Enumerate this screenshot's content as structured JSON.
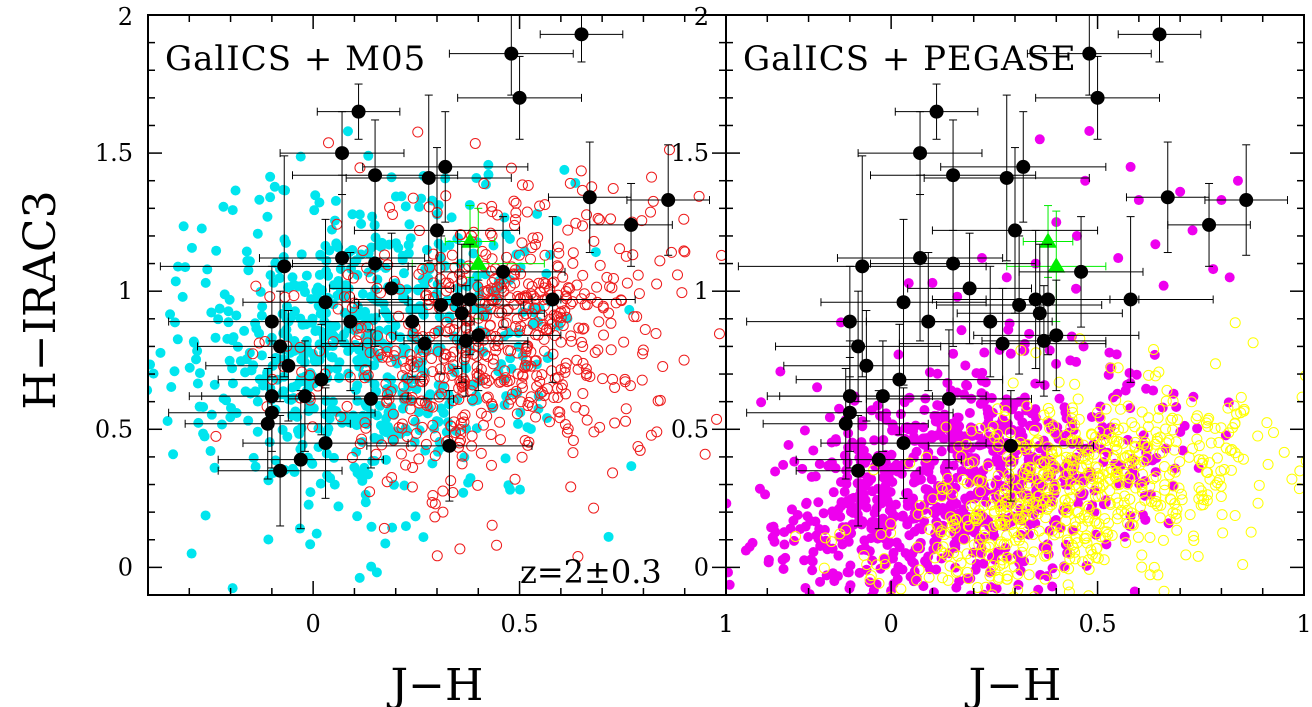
{
  "chart_data": [
    {
      "type": "scatter",
      "panel_title": "GalICS + M05",
      "xlabel": "J−H",
      "ylabel": "H−IRAC3",
      "xlim": [
        -0.4,
        1.0
      ],
      "ylim": [
        -0.1,
        2.0
      ],
      "xticks": [
        "0",
        "0.5",
        "1"
      ],
      "yticks": [
        "0",
        "0.5",
        "1",
        "1.5",
        "2"
      ],
      "annotation": "z=2±0.3",
      "series": [
        {
          "color": "#00e5ee",
          "marker": "filled-circle",
          "cloud": {
            "center": [
              0.12,
              0.8
            ],
            "spread": [
              0.22,
              0.36
            ],
            "n": 700,
            "rotation": 0.55
          }
        },
        {
          "color": "#ee1c1c",
          "marker": "open-circle",
          "cloud": {
            "center": [
              0.45,
              0.82
            ],
            "spread": [
              0.22,
              0.3
            ],
            "n": 650,
            "rotation": 0.45
          }
        },
        {
          "color": "#00ee00",
          "marker": "filled-triangle",
          "points": [
            {
              "x": 0.38,
              "y": 1.18,
              "xerr": 0.06,
              "yerr": 0.13
            },
            {
              "x": 0.4,
              "y": 1.1,
              "xerr": 0.16,
              "yerr": 0.2
            }
          ]
        },
        {
          "color": "#000000",
          "marker": "filled-circle",
          "points": [
            {
              "x": -0.1,
              "y": 0.89,
              "xerr": 0.25,
              "yerr": 0.2
            },
            {
              "x": -0.07,
              "y": 1.09,
              "xerr": 0.3,
              "yerr": 0.4
            },
            {
              "x": -0.08,
              "y": 0.8,
              "xerr": 0.2,
              "yerr": 0.2
            },
            {
              "x": -0.06,
              "y": 0.73,
              "xerr": 0.2,
              "yerr": 0.2
            },
            {
              "x": -0.1,
              "y": 0.62,
              "xerr": 0.2,
              "yerr": 0.2
            },
            {
              "x": -0.1,
              "y": 0.56,
              "xerr": 0.25,
              "yerr": 0.2
            },
            {
              "x": -0.11,
              "y": 0.52,
              "xerr": 0.2,
              "yerr": 0.2
            },
            {
              "x": -0.02,
              "y": 0.62,
              "xerr": 0.25,
              "yerr": 0.2
            },
            {
              "x": -0.08,
              "y": 0.35,
              "xerr": 0.15,
              "yerr": 0.2
            },
            {
              "x": -0.03,
              "y": 0.39,
              "xerr": 0.2,
              "yerr": 0.25
            },
            {
              "x": 0.03,
              "y": 0.45,
              "xerr": 0.2,
              "yerr": 0.2
            },
            {
              "x": 0.02,
              "y": 0.68,
              "xerr": 0.25,
              "yerr": 0.2
            },
            {
              "x": 0.03,
              "y": 0.96,
              "xerr": 0.2,
              "yerr": 0.3
            },
            {
              "x": 0.07,
              "y": 1.12,
              "xerr": 0.2,
              "yerr": 0.3
            },
            {
              "x": 0.09,
              "y": 0.89,
              "xerr": 0.15,
              "yerr": 0.25
            },
            {
              "x": 0.14,
              "y": 0.61,
              "xerr": 0.2,
              "yerr": 0.25
            },
            {
              "x": 0.15,
              "y": 1.1,
              "xerr": 0.2,
              "yerr": 0.3
            },
            {
              "x": 0.19,
              "y": 1.01,
              "xerr": 0.15,
              "yerr": 0.2
            },
            {
              "x": 0.24,
              "y": 0.89,
              "xerr": 0.15,
              "yerr": 0.2
            },
            {
              "x": 0.27,
              "y": 0.81,
              "xerr": 0.25,
              "yerr": 0.2
            },
            {
              "x": 0.3,
              "y": 1.22,
              "xerr": 0.2,
              "yerr": 0.3
            },
            {
              "x": 0.31,
              "y": 0.95,
              "xerr": 0.2,
              "yerr": 0.25
            },
            {
              "x": 0.33,
              "y": 0.44,
              "xerr": 0.2,
              "yerr": 0.2
            },
            {
              "x": 0.35,
              "y": 0.97,
              "xerr": 0.25,
              "yerr": 0.25
            },
            {
              "x": 0.36,
              "y": 0.92,
              "xerr": 0.2,
              "yerr": 0.25
            },
            {
              "x": 0.37,
              "y": 0.82,
              "xerr": 0.15,
              "yerr": 0.2
            },
            {
              "x": 0.38,
              "y": 0.97,
              "xerr": 0.15,
              "yerr": 0.2
            },
            {
              "x": 0.28,
              "y": 1.41,
              "xerr": 0.2,
              "yerr": 0.3
            },
            {
              "x": 0.07,
              "y": 1.5,
              "xerr": 0.15,
              "yerr": 0.15
            },
            {
              "x": 0.15,
              "y": 1.42,
              "xerr": 0.2,
              "yerr": 0.2
            },
            {
              "x": 0.32,
              "y": 1.45,
              "xerr": 0.2,
              "yerr": 0.2
            },
            {
              "x": 0.11,
              "y": 1.65,
              "xerr": 0.1,
              "yerr": 0.1
            },
            {
              "x": 0.48,
              "y": 1.86,
              "xerr": 0.15,
              "yerr": 0.15
            },
            {
              "x": 0.5,
              "y": 1.7,
              "xerr": 0.15,
              "yerr": 0.15
            },
            {
              "x": 0.65,
              "y": 1.93,
              "xerr": 0.1,
              "yerr": 0.1
            },
            {
              "x": 0.46,
              "y": 1.07,
              "xerr": 0.15,
              "yerr": 0.2
            },
            {
              "x": 0.58,
              "y": 0.97,
              "xerr": 0.2,
              "yerr": 0.3
            },
            {
              "x": 0.67,
              "y": 1.34,
              "xerr": 0.1,
              "yerr": 0.2
            },
            {
              "x": 0.77,
              "y": 1.24,
              "xerr": 0.1,
              "yerr": 0.15
            },
            {
              "x": 0.86,
              "y": 1.33,
              "xerr": 0.1,
              "yerr": 0.2
            },
            {
              "x": 0.4,
              "y": 0.84,
              "xerr": 0.2,
              "yerr": 0.2
            }
          ]
        }
      ]
    },
    {
      "type": "scatter",
      "panel_title": "GalICS + PEGASE",
      "xlabel": "J−H",
      "ylabel": "",
      "xlim": [
        -0.4,
        1.0
      ],
      "ylim": [
        -0.1,
        2.0
      ],
      "xticks": [
        "1",
        "0",
        "0.5",
        "1"
      ],
      "yticks": [
        "0",
        "0.5",
        "1",
        "1.5",
        "2"
      ],
      "series": [
        {
          "color": "#ee00ee",
          "marker": "filled-circle",
          "cloud": {
            "center": [
              0.15,
              0.3
            ],
            "spread": [
              0.25,
              0.26
            ],
            "n": 900,
            "rotation": 0.25
          }
        },
        {
          "color": "#ffff00",
          "marker": "open-circle",
          "cloud": {
            "center": [
              0.45,
              0.28
            ],
            "spread": [
              0.24,
              0.22
            ],
            "n": 700,
            "rotation": 0.35
          }
        },
        {
          "color": "#ee00ee",
          "marker": "filled-circle",
          "points": [
            {
              "x": 0.36,
              "y": 1.55
            },
            {
              "x": 0.48,
              "y": 1.58
            },
            {
              "x": 0.47,
              "y": 1.4
            },
            {
              "x": 0.58,
              "y": 1.45
            },
            {
              "x": 0.6,
              "y": 1.33
            },
            {
              "x": 0.7,
              "y": 1.36
            },
            {
              "x": 0.8,
              "y": 1.33
            },
            {
              "x": 0.84,
              "y": 1.4
            },
            {
              "x": 0.73,
              "y": 1.22
            },
            {
              "x": 0.78,
              "y": 1.08
            },
            {
              "x": 0.64,
              "y": 1.17
            },
            {
              "x": 0.55,
              "y": 1.12
            },
            {
              "x": 0.45,
              "y": 1.2
            },
            {
              "x": 0.35,
              "y": 1.1
            },
            {
              "x": 0.28,
              "y": 1.05
            },
            {
              "x": 0.22,
              "y": 1.12
            },
            {
              "x": 0.1,
              "y": 1.03
            },
            {
              "x": 0.16,
              "y": 0.98
            },
            {
              "x": 0.82,
              "y": 1.05
            },
            {
              "x": 0.66,
              "y": 1.02
            },
            {
              "x": 0.4,
              "y": 1.25
            }
          ]
        },
        {
          "color": "#00ee00",
          "marker": "filled-triangle",
          "points": [
            {
              "x": 0.38,
              "y": 1.18,
              "xerr": 0.06,
              "yerr": 0.13
            },
            {
              "x": 0.4,
              "y": 1.09,
              "xerr": 0.12,
              "yerr": 0.2
            }
          ]
        },
        {
          "color": "#000000",
          "marker": "filled-circle",
          "points": [
            {
              "x": -0.1,
              "y": 0.89,
              "xerr": 0.25,
              "yerr": 0.2
            },
            {
              "x": -0.07,
              "y": 1.09,
              "xerr": 0.3,
              "yerr": 0.4
            },
            {
              "x": -0.08,
              "y": 0.8,
              "xerr": 0.2,
              "yerr": 0.2
            },
            {
              "x": -0.06,
              "y": 0.73,
              "xerr": 0.2,
              "yerr": 0.2
            },
            {
              "x": -0.1,
              "y": 0.62,
              "xerr": 0.2,
              "yerr": 0.2
            },
            {
              "x": -0.1,
              "y": 0.56,
              "xerr": 0.25,
              "yerr": 0.2
            },
            {
              "x": -0.11,
              "y": 0.52,
              "xerr": 0.2,
              "yerr": 0.2
            },
            {
              "x": -0.02,
              "y": 0.62,
              "xerr": 0.25,
              "yerr": 0.2
            },
            {
              "x": -0.08,
              "y": 0.35,
              "xerr": 0.15,
              "yerr": 0.2
            },
            {
              "x": -0.03,
              "y": 0.39,
              "xerr": 0.2,
              "yerr": 0.25
            },
            {
              "x": 0.03,
              "y": 0.45,
              "xerr": 0.2,
              "yerr": 0.2
            },
            {
              "x": 0.02,
              "y": 0.68,
              "xerr": 0.25,
              "yerr": 0.2
            },
            {
              "x": 0.03,
              "y": 0.96,
              "xerr": 0.2,
              "yerr": 0.3
            },
            {
              "x": 0.07,
              "y": 1.12,
              "xerr": 0.2,
              "yerr": 0.3
            },
            {
              "x": 0.09,
              "y": 0.89,
              "xerr": 0.15,
              "yerr": 0.25
            },
            {
              "x": 0.14,
              "y": 0.61,
              "xerr": 0.2,
              "yerr": 0.25
            },
            {
              "x": 0.15,
              "y": 1.1,
              "xerr": 0.2,
              "yerr": 0.3
            },
            {
              "x": 0.19,
              "y": 1.01,
              "xerr": 0.15,
              "yerr": 0.2
            },
            {
              "x": 0.24,
              "y": 0.89,
              "xerr": 0.15,
              "yerr": 0.2
            },
            {
              "x": 0.27,
              "y": 0.81,
              "xerr": 0.25,
              "yerr": 0.2
            },
            {
              "x": 0.3,
              "y": 1.22,
              "xerr": 0.2,
              "yerr": 0.3
            },
            {
              "x": 0.31,
              "y": 0.95,
              "xerr": 0.2,
              "yerr": 0.25
            },
            {
              "x": 0.29,
              "y": 0.44,
              "xerr": 0.2,
              "yerr": 0.2
            },
            {
              "x": 0.35,
              "y": 0.97,
              "xerr": 0.25,
              "yerr": 0.25
            },
            {
              "x": 0.36,
              "y": 0.92,
              "xerr": 0.2,
              "yerr": 0.25
            },
            {
              "x": 0.37,
              "y": 0.82,
              "xerr": 0.15,
              "yerr": 0.2
            },
            {
              "x": 0.38,
              "y": 0.97,
              "xerr": 0.15,
              "yerr": 0.2
            },
            {
              "x": 0.28,
              "y": 1.41,
              "xerr": 0.2,
              "yerr": 0.3
            },
            {
              "x": 0.07,
              "y": 1.5,
              "xerr": 0.15,
              "yerr": 0.15
            },
            {
              "x": 0.15,
              "y": 1.42,
              "xerr": 0.2,
              "yerr": 0.2
            },
            {
              "x": 0.32,
              "y": 1.45,
              "xerr": 0.2,
              "yerr": 0.2
            },
            {
              "x": 0.11,
              "y": 1.65,
              "xerr": 0.1,
              "yerr": 0.1
            },
            {
              "x": 0.48,
              "y": 1.86,
              "xerr": 0.15,
              "yerr": 0.15
            },
            {
              "x": 0.5,
              "y": 1.7,
              "xerr": 0.15,
              "yerr": 0.15
            },
            {
              "x": 0.65,
              "y": 1.93,
              "xerr": 0.1,
              "yerr": 0.1
            },
            {
              "x": 0.46,
              "y": 1.07,
              "xerr": 0.15,
              "yerr": 0.2
            },
            {
              "x": 0.58,
              "y": 0.97,
              "xerr": 0.2,
              "yerr": 0.3
            },
            {
              "x": 0.67,
              "y": 1.34,
              "xerr": 0.1,
              "yerr": 0.2
            },
            {
              "x": 0.77,
              "y": 1.24,
              "xerr": 0.1,
              "yerr": 0.15
            },
            {
              "x": 0.86,
              "y": 1.33,
              "xerr": 0.1,
              "yerr": 0.2
            },
            {
              "x": 0.4,
              "y": 0.84,
              "xerr": 0.2,
              "yerr": 0.2
            }
          ]
        }
      ]
    }
  ]
}
